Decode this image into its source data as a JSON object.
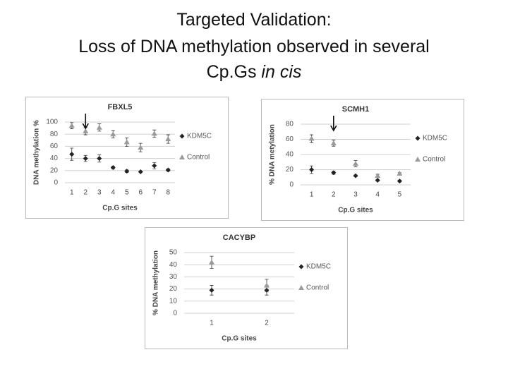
{
  "title": {
    "line1": "Targeted Validation:",
    "line2": "Loss of DNA methylation observed in several",
    "line3": "Cp.Gs",
    "line3_italic": "in cis"
  },
  "chart_data": [
    {
      "type": "scatter",
      "title": "FBXL5",
      "x_label": "Cp.G sites",
      "y_label": "DNA methylation %",
      "categories": [
        "1",
        "2",
        "3",
        "4",
        "5",
        "6",
        "7",
        "8"
      ],
      "series": [
        {
          "name": "KDM5C",
          "color": "#222222",
          "marker": "diamond",
          "values": [
            47,
            40,
            40,
            25,
            19,
            18,
            28,
            21
          ],
          "errors": [
            10,
            5,
            6,
            2,
            2,
            1,
            5,
            2
          ]
        },
        {
          "name": "Control",
          "color": "#9a9a9a",
          "marker": "triangle",
          "values": [
            94,
            85,
            91,
            80,
            67,
            58,
            81,
            72
          ],
          "errors": [
            5,
            6,
            6,
            6,
            7,
            7,
            6,
            7
          ]
        }
      ],
      "ylim": [
        0,
        100
      ],
      "yticks": [
        0,
        20,
        40,
        60,
        80,
        100
      ],
      "grid": true,
      "legend": "right",
      "arrow_at": "2"
    },
    {
      "type": "scatter",
      "title": "SCMH1",
      "x_label": "Cp.G sites",
      "y_label": "% DNA metylation",
      "categories": [
        "1",
        "2",
        "3",
        "4",
        "5"
      ],
      "series": [
        {
          "name": "KDM5C",
          "color": "#222222",
          "marker": "diamond",
          "values": [
            20,
            16,
            12,
            6,
            5
          ],
          "errors": [
            5,
            2,
            1,
            1,
            1
          ]
        },
        {
          "name": "Control",
          "color": "#9a9a9a",
          "marker": "triangle",
          "values": [
            61,
            55,
            28,
            12,
            15
          ],
          "errors": [
            5,
            4,
            4,
            2,
            1
          ]
        }
      ],
      "ylim": [
        0,
        80
      ],
      "yticks": [
        0,
        20,
        40,
        60,
        80
      ],
      "grid": true,
      "legend": "right",
      "arrow_at": "2"
    },
    {
      "type": "scatter",
      "title": "CACYBP",
      "x_label": "Cp.G sites",
      "y_label": "% DNA methylation",
      "categories": [
        "1",
        "2"
      ],
      "series": [
        {
          "name": "KDM5C",
          "color": "#222222",
          "marker": "diamond",
          "values": [
            19,
            19
          ],
          "errors": [
            4,
            4
          ]
        },
        {
          "name": "Control",
          "color": "#9a9a9a",
          "marker": "triangle",
          "values": [
            42,
            23
          ],
          "errors": [
            5,
            5
          ]
        }
      ],
      "ylim": [
        0,
        50
      ],
      "yticks": [
        0,
        10,
        20,
        30,
        40,
        50
      ],
      "grid": true,
      "legend": "right"
    }
  ]
}
